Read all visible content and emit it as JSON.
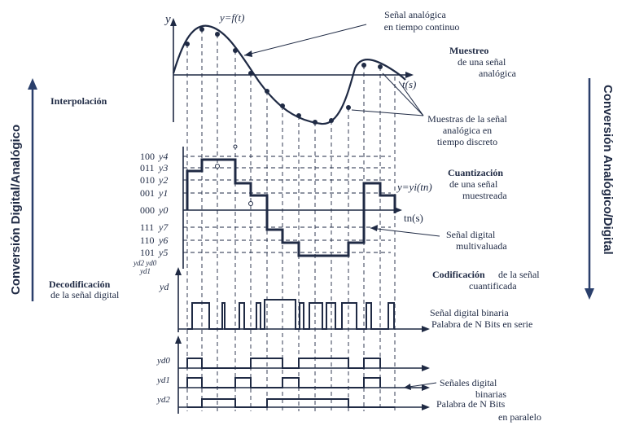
{
  "top_labels": {
    "y_axis": "y",
    "function": "y=f(t)",
    "analog_signal": [
      "Señal analógica",
      "en tiempo continuo"
    ],
    "sampling_title": "Muestreo",
    "sampling_sub": [
      "de una señal",
      "analógica"
    ],
    "t_axis": "t(s)",
    "samples": [
      "Muestras de la señal",
      "analógica en",
      "tiempo discreto"
    ]
  },
  "left_labels": {
    "interpolation": "Interpolación",
    "decoding_title": "Decodificación",
    "decoding_sub": "de la señal digital"
  },
  "side_labels": {
    "left": "Conversión Digital/Analógico",
    "right": "Conversión Analógico/Digital"
  },
  "levels": [
    {
      "code": "100",
      "sym": "y4"
    },
    {
      "code": "011",
      "sym": "y3"
    },
    {
      "code": "010",
      "sym": "y2"
    },
    {
      "code": "001",
      "sym": "y1"
    },
    {
      "code": "000",
      "sym": "y0"
    },
    {
      "code": "111",
      "sym": "y7"
    },
    {
      "code": "110",
      "sym": "y6"
    },
    {
      "code": "101",
      "sym": "y5"
    }
  ],
  "bit_symbols": {
    "stack": [
      "yd2 yd0",
      "yd1"
    ],
    "yd": "yd",
    "yd0": "yd0",
    "yd1": "yd1",
    "yd2": "yd2"
  },
  "quant": {
    "title": "Cuantización",
    "sub": [
      "de una señal",
      "muestreada"
    ],
    "eq": "y=yi(tn)",
    "tn": "tn(s)",
    "digital": [
      "Señal digital",
      "multivaluada"
    ]
  },
  "coding": {
    "title_bold": "Codificación",
    "title_rest": " de la señal",
    "sub": "cuantificada",
    "serial": [
      "Señal digital binaria",
      "Palabra de N Bits en serie"
    ]
  },
  "parallel": [
    "Señales digital",
    "binarias",
    "Palabra de N Bits",
    "en paralelo"
  ],
  "colors": {
    "ink": "#1f2a44",
    "arrow": "#2a3f6b"
  }
}
